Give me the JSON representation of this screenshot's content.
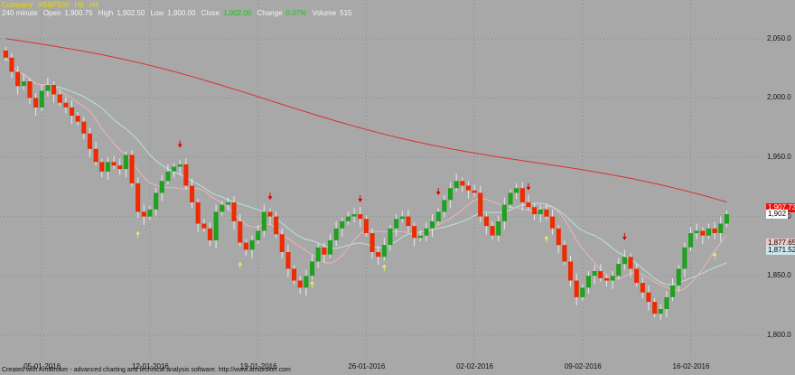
{
  "header": {
    "company_label": "Company",
    "symbol": "#S&P500",
    "symbol_suffix": "H6",
    "timeframe_code": "H4",
    "timeframe": "240 minute",
    "open_label": "Open",
    "open": "1,900.75",
    "high_label": "High",
    "high": "1,902.50",
    "low_label": "Low",
    "low": "1,900.00",
    "close_label": "Close",
    "close": "1,902.00",
    "change_label": "Change",
    "change": "0.07%",
    "volume_label": "Volume",
    "volume": "515"
  },
  "colors": {
    "background": "#a8a8a8",
    "bull": "#1fa01f",
    "bear": "#ee2a00",
    "ma_slow": "#d83232",
    "ma_mid": "#b8e4dc",
    "ma_fast": "#f0b4b4",
    "signal_down": "#e00000",
    "signal_up": "#d8f060",
    "header_company": "#e8d800",
    "close_value": "#20c020"
  },
  "footer": "Created with AmiBroker - advanced charting and technical analysis software. http://www.amibroker.com",
  "chart_data": {
    "type": "candlestick",
    "ylim": [
      1790,
      2075
    ],
    "y_ticks": [
      "2,050.0",
      "2,000.0",
      "1,950.0",
      "1,900.0",
      "1,850.0",
      "1,800.0"
    ],
    "y_tick_values": [
      2050,
      2000,
      1950,
      1900,
      1850,
      1800
    ],
    "x_ticks": [
      "05-01-2016",
      "12-01-2016",
      "19-01-2016",
      "26-01-2016",
      "02-02-2016",
      "09-02-2016",
      "16-02-2016"
    ],
    "x_tick_indices": [
      6,
      24,
      42,
      60,
      78,
      96,
      114
    ],
    "last_labels": [
      {
        "text": "1,907.73",
        "value": 1907.73,
        "bg": "#ee1010",
        "fg": "#ffffff"
      },
      {
        "text": "1,902",
        "value": 1902,
        "bg": "#ffffff",
        "fg": "#000000"
      },
      {
        "text": "1,877.65",
        "value": 1877.65,
        "bg": "#f4c8c8",
        "fg": "#000000"
      },
      {
        "text": "1,871.52",
        "value": 1871.52,
        "bg": "#cce8ec",
        "fg": "#000000"
      }
    ],
    "closes": [
      2034,
      2022,
      2010,
      2014,
      2000,
      1992,
      2006,
      2011,
      2003,
      1996,
      1992,
      1985,
      1980,
      1970,
      1957,
      1946,
      1938,
      1946,
      1943,
      1940,
      1952,
      1928,
      1904,
      1900,
      1906,
      1920,
      1930,
      1938,
      1942,
      1944,
      1926,
      1912,
      1894,
      1890,
      1880,
      1904,
      1910,
      1912,
      1896,
      1878,
      1872,
      1880,
      1888,
      1904,
      1900,
      1885,
      1870,
      1856,
      1846,
      1840,
      1850,
      1862,
      1874,
      1868,
      1880,
      1890,
      1896,
      1900,
      1902,
      1898,
      1886,
      1870,
      1866,
      1876,
      1890,
      1898,
      1900,
      1892,
      1882,
      1884,
      1890,
      1896,
      1904,
      1914,
      1924,
      1930,
      1926,
      1922,
      1920,
      1900,
      1892,
      1884,
      1896,
      1910,
      1920,
      1924,
      1912,
      1908,
      1902,
      1906,
      1900,
      1890,
      1876,
      1862,
      1846,
      1832,
      1840,
      1850,
      1854,
      1848,
      1846,
      1850,
      1860,
      1866,
      1856,
      1844,
      1836,
      1828,
      1818,
      1822,
      1832,
      1842,
      1856,
      1874,
      1886,
      1888,
      1884,
      1890,
      1886,
      1894,
      1902
    ],
    "ma_slow": {
      "start": 2050,
      "end": 1907.73
    },
    "ma_mid": {
      "start": 2049,
      "end": 1871.52
    },
    "ma_fast": {
      "start": 2043,
      "end": 1877.65
    },
    "signals_down": [
      29,
      44,
      59,
      72,
      87,
      103,
      124
    ],
    "signals_up": [
      22,
      39,
      51,
      63,
      90,
      118
    ],
    "signals_up_extra": [
      44,
      66,
      101
    ]
  }
}
